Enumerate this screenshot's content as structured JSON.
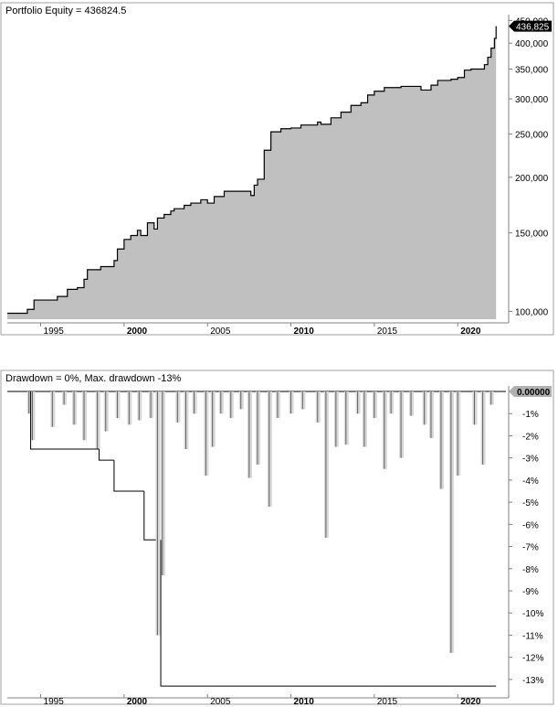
{
  "chart_data": [
    {
      "type": "area",
      "title": "Portfolio Equity = 436824.5",
      "scale": "log",
      "ylim": [
        96000,
        455000
      ],
      "y_ticks": [
        100000,
        150000,
        200000,
        250000,
        300000,
        350000,
        400000,
        450000
      ],
      "y_tick_labels": [
        "100,000",
        "150,000",
        "200,000",
        "250,000",
        "300,000",
        "350,000",
        "400,000",
        "450,000"
      ],
      "x_ticks": [
        {
          "year": 1995,
          "label": "1995",
          "bold": false
        },
        {
          "year": 2000,
          "label": "2000",
          "bold": true
        },
        {
          "year": 2005,
          "label": "2005",
          "bold": false
        },
        {
          "year": 2010,
          "label": "2010",
          "bold": true
        },
        {
          "year": 2015,
          "label": "2015",
          "bold": false
        },
        {
          "year": 2020,
          "label": "2020",
          "bold": true
        }
      ],
      "xlim": [
        1993.0,
        2023.0
      ],
      "last_value_label": "436,825",
      "x": [
        1993.0,
        1994.0,
        1994.2,
        1994.6,
        1995.6,
        1996.0,
        1996.6,
        1997.2,
        1997.6,
        1997.8,
        1998.6,
        1999.4,
        1999.6,
        2000.0,
        2000.4,
        2000.8,
        2001.0,
        2001.4,
        2001.8,
        2002.0,
        2002.4,
        2002.8,
        2003.0,
        2003.6,
        2004.0,
        2004.6,
        2005.0,
        2005.4,
        2006.0,
        2007.2,
        2007.6,
        2007.8,
        2008.0,
        2008.4,
        2008.8,
        2009.4,
        2010.0,
        2010.6,
        2011.6,
        2011.8,
        2012.4,
        2013.0,
        2013.6,
        2014.2,
        2014.6,
        2015.0,
        2015.6,
        2016.6,
        2017.8,
        2018.4,
        2018.8,
        2019.6,
        2020.0,
        2020.4,
        2020.8,
        2021.6,
        2021.8,
        2022.0,
        2022.2,
        2022.3
      ],
      "values": [
        99000,
        99000,
        101000,
        106000,
        106000,
        108000,
        112000,
        113000,
        118000,
        124000,
        126000,
        130000,
        138000,
        145000,
        148000,
        152000,
        148000,
        158000,
        153000,
        162000,
        165000,
        168000,
        170000,
        173000,
        175000,
        178000,
        175000,
        181000,
        186000,
        186000,
        182000,
        192000,
        198000,
        230000,
        253000,
        257000,
        258000,
        262000,
        266000,
        263000,
        272000,
        280000,
        290000,
        294000,
        306000,
        312000,
        318000,
        320000,
        314000,
        322000,
        330000,
        332000,
        335000,
        348000,
        350000,
        358000,
        372000,
        390000,
        410000,
        436825
      ],
      "colors": {
        "fill": "#c0c0c0",
        "line": "#000000"
      }
    },
    {
      "type": "area",
      "title": "Drawdown = 0%, Max. drawdown -13%",
      "ylim": [
        -13.9,
        0.6
      ],
      "y_ticks": [
        -1,
        -2,
        -3,
        -4,
        -5,
        -6,
        -7,
        -8,
        -9,
        -10,
        -11,
        -12,
        -13
      ],
      "y_tick_labels": [
        "-1%",
        "-2%",
        "-3%",
        "-4%",
        "-5%",
        "-6%",
        "-7%",
        "-8%",
        "-9%",
        "-10%",
        "-11%",
        "-12%",
        "-13%"
      ],
      "x_ticks": [
        {
          "year": 1995,
          "label": "1995",
          "bold": false
        },
        {
          "year": 2000,
          "label": "2000",
          "bold": true
        },
        {
          "year": 2005,
          "label": "2005",
          "bold": false
        },
        {
          "year": 2010,
          "label": "2010",
          "bold": true
        },
        {
          "year": 2015,
          "label": "2015",
          "bold": false
        },
        {
          "year": 2020,
          "label": "2020",
          "bold": true
        }
      ],
      "xlim": [
        1993.0,
        2023.0
      ],
      "last_value_label": "0.00000",
      "spikes": [
        {
          "x": 1994.3,
          "y": -1.0
        },
        {
          "x": 1994.5,
          "y": -2.2
        },
        {
          "x": 1995.7,
          "y": -1.6
        },
        {
          "x": 1996.4,
          "y": -0.6
        },
        {
          "x": 1997.0,
          "y": -1.5
        },
        {
          "x": 1997.6,
          "y": -2.2
        },
        {
          "x": 1998.4,
          "y": -2.6
        },
        {
          "x": 1998.9,
          "y": -1.8
        },
        {
          "x": 1999.6,
          "y": -1.2
        },
        {
          "x": 2000.3,
          "y": -1.5
        },
        {
          "x": 2000.9,
          "y": -1.3
        },
        {
          "x": 2001.6,
          "y": -1.2
        },
        {
          "x": 2002.0,
          "y": -11.0
        },
        {
          "x": 2002.3,
          "y": -8.3
        },
        {
          "x": 2003.2,
          "y": -1.4
        },
        {
          "x": 2003.7,
          "y": -2.6
        },
        {
          "x": 2004.2,
          "y": -1.0
        },
        {
          "x": 2004.9,
          "y": -3.8
        },
        {
          "x": 2005.3,
          "y": -2.5
        },
        {
          "x": 2005.8,
          "y": -1.0
        },
        {
          "x": 2006.4,
          "y": -1.2
        },
        {
          "x": 2007.0,
          "y": -0.8
        },
        {
          "x": 2007.5,
          "y": -3.9
        },
        {
          "x": 2008.0,
          "y": -3.3
        },
        {
          "x": 2008.7,
          "y": -5.2
        },
        {
          "x": 2009.2,
          "y": -1.2
        },
        {
          "x": 2010.0,
          "y": -1.0
        },
        {
          "x": 2010.7,
          "y": -0.8
        },
        {
          "x": 2011.6,
          "y": -1.4
        },
        {
          "x": 2012.1,
          "y": -6.6
        },
        {
          "x": 2012.7,
          "y": -2.5
        },
        {
          "x": 2013.3,
          "y": -2.4
        },
        {
          "x": 2014.0,
          "y": -1.0
        },
        {
          "x": 2014.4,
          "y": -2.5
        },
        {
          "x": 2015.0,
          "y": -1.2
        },
        {
          "x": 2015.6,
          "y": -3.5
        },
        {
          "x": 2016.0,
          "y": -1.0
        },
        {
          "x": 2016.6,
          "y": -3.0
        },
        {
          "x": 2017.2,
          "y": -1.1
        },
        {
          "x": 2018.0,
          "y": -1.5
        },
        {
          "x": 2018.4,
          "y": -2.1
        },
        {
          "x": 2019.0,
          "y": -4.4
        },
        {
          "x": 2019.6,
          "y": -11.8
        },
        {
          "x": 2020.0,
          "y": -3.8
        },
        {
          "x": 2021.0,
          "y": -1.5
        },
        {
          "x": 2021.5,
          "y": -3.3
        },
        {
          "x": 2022.0,
          "y": -0.6
        }
      ],
      "max_drawdown_segments": [
        {
          "x_start": 1994.4,
          "x_end": 1998.5,
          "y": -2.6
        },
        {
          "x_start": 1998.5,
          "x_end": 1999.4,
          "y": -3.1
        },
        {
          "x_start": 1999.4,
          "x_end": 2001.2,
          "y": -4.5
        },
        {
          "x_start": 2001.2,
          "x_end": 2001.9,
          "y": -6.7
        },
        {
          "x_start": 2002.2,
          "x_end": 2022.3,
          "y": -13.3
        }
      ],
      "colors": {
        "fill": "#d8d8d8",
        "line": "#000000",
        "spike": "#606060"
      }
    }
  ]
}
